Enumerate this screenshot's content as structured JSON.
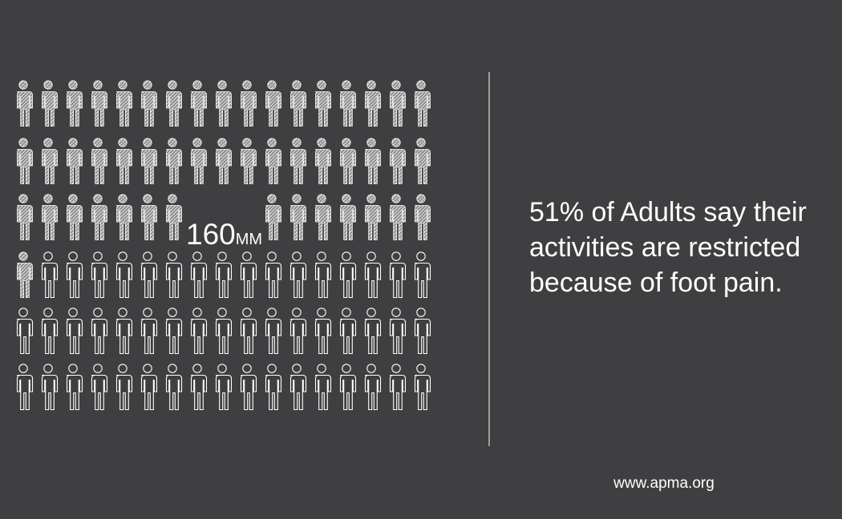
{
  "figure": {
    "number": "160",
    "unit": "MM"
  },
  "statement": {
    "lines": [
      "51% of Adults say their",
      "activities are restricted",
      "because of foot pain."
    ]
  },
  "footer": {
    "url": "www.apma.org"
  }
}
